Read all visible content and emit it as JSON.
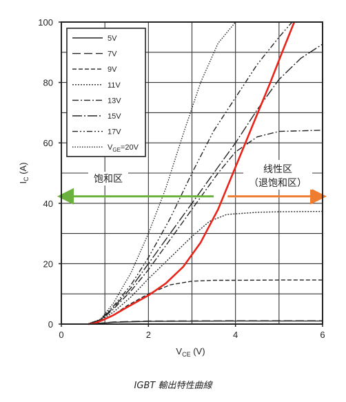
{
  "caption": "IGBT 輸出特性曲線",
  "chart_data": {
    "type": "line",
    "xlabel_main": "V",
    "xlabel_sub": "CE",
    "xlabel_unit": "(V)",
    "ylabel_main": "I",
    "ylabel_sub": "C",
    "ylabel_unit": "(A)",
    "xlim": [
      0,
      6
    ],
    "ylim": [
      0,
      100
    ],
    "x_ticks": [
      0,
      2,
      4,
      6
    ],
    "y_ticks": [
      0,
      20,
      40,
      60,
      80,
      100
    ],
    "grid": true,
    "legend_position": "top-left",
    "series": [
      {
        "name": "5V",
        "style": "solid",
        "color": "#222222",
        "points": [
          [
            0,
            0
          ],
          [
            0.6,
            0
          ],
          [
            0.9,
            0.3
          ],
          [
            1.2,
            0.6
          ],
          [
            2,
            0.9
          ],
          [
            4,
            1
          ],
          [
            6,
            1
          ]
        ]
      },
      {
        "name": "7V",
        "style": "longdash",
        "color": "#222222",
        "points": [
          [
            0,
            0
          ],
          [
            0.6,
            0
          ],
          [
            0.9,
            0.3
          ],
          [
            1.2,
            0.7
          ],
          [
            2,
            1
          ],
          [
            4,
            1.1
          ],
          [
            6,
            1.1
          ]
        ]
      },
      {
        "name": "9V",
        "style": "dash",
        "color": "#222222",
        "points": [
          [
            0,
            0
          ],
          [
            0.6,
            0
          ],
          [
            0.9,
            1
          ],
          [
            1.2,
            3
          ],
          [
            1.5,
            6
          ],
          [
            2,
            10
          ],
          [
            2.5,
            13
          ],
          [
            3,
            14.2
          ],
          [
            3.5,
            14.5
          ],
          [
            4,
            14.5
          ],
          [
            5,
            14.6
          ],
          [
            6,
            14.6
          ]
        ]
      },
      {
        "name": "11V",
        "style": "dot",
        "color": "#222222",
        "points": [
          [
            0,
            0
          ],
          [
            0.6,
            0
          ],
          [
            0.9,
            1.2
          ],
          [
            1.2,
            4
          ],
          [
            1.6,
            9
          ],
          [
            2,
            15
          ],
          [
            2.5,
            22
          ],
          [
            3,
            29
          ],
          [
            3.4,
            34
          ],
          [
            3.8,
            36.3
          ],
          [
            4.5,
            37
          ],
          [
            5,
            37.2
          ],
          [
            6,
            37.3
          ]
        ]
      },
      {
        "name": "13V",
        "style": "dashdot",
        "color": "#222222",
        "points": [
          [
            0,
            0
          ],
          [
            0.6,
            0
          ],
          [
            0.9,
            1.3
          ],
          [
            1.2,
            5
          ],
          [
            1.6,
            11
          ],
          [
            2,
            18
          ],
          [
            2.4,
            26
          ],
          [
            2.8,
            34
          ],
          [
            3.2,
            42
          ],
          [
            3.6,
            50
          ],
          [
            4,
            57
          ],
          [
            4.5,
            62
          ],
          [
            5,
            63.8
          ],
          [
            6,
            64.2
          ]
        ]
      },
      {
        "name": "15V",
        "style": "longdashdot",
        "color": "#222222",
        "points": [
          [
            0,
            0
          ],
          [
            0.6,
            0
          ],
          [
            0.9,
            1.4
          ],
          [
            1.2,
            5.5
          ],
          [
            1.6,
            12
          ],
          [
            2,
            20
          ],
          [
            2.5,
            30
          ],
          [
            3,
            40
          ],
          [
            3.5,
            50
          ],
          [
            4,
            60
          ],
          [
            4.5,
            71
          ],
          [
            5,
            81
          ],
          [
            5.5,
            88
          ],
          [
            6,
            92.7
          ]
        ]
      },
      {
        "name": "17V",
        "style": "dashdotdot",
        "color": "#222222",
        "points": [
          [
            0,
            0
          ],
          [
            0.6,
            0
          ],
          [
            0.9,
            1.5
          ],
          [
            1.2,
            6
          ],
          [
            1.6,
            13
          ],
          [
            2,
            22
          ],
          [
            2.5,
            35
          ],
          [
            3,
            50
          ],
          [
            3.5,
            64
          ],
          [
            4,
            75
          ],
          [
            4.5,
            86
          ],
          [
            5,
            95
          ],
          [
            5.3,
            100
          ]
        ]
      },
      {
        "name": "V_GE=20V",
        "style": "finedot",
        "color": "#222222",
        "points": [
          [
            0,
            0
          ],
          [
            0.6,
            0
          ],
          [
            0.9,
            1.6
          ],
          [
            1.2,
            7
          ],
          [
            1.6,
            17
          ],
          [
            2,
            30
          ],
          [
            2.4,
            45
          ],
          [
            2.8,
            63
          ],
          [
            3.2,
            80
          ],
          [
            3.6,
            93
          ],
          [
            4.0,
            100
          ]
        ]
      },
      {
        "name": "",
        "style": "thick",
        "color": "#e8241a",
        "points": [
          [
            0.62,
            0
          ],
          [
            0.75,
            0.2
          ],
          [
            0.95,
            1.3
          ],
          [
            1.2,
            3
          ],
          [
            1.5,
            5.5
          ],
          [
            2,
            9.5
          ],
          [
            2.4,
            13.5
          ],
          [
            2.8,
            19
          ],
          [
            3.2,
            27
          ],
          [
            3.6,
            38
          ],
          [
            4,
            52
          ],
          [
            4.4,
            66
          ],
          [
            4.8,
            80
          ],
          [
            5.1,
            91
          ],
          [
            5.35,
            100
          ]
        ]
      }
    ],
    "legend": {
      "entries": [
        "5V",
        "7V",
        "9V",
        "11V",
        "13V",
        "15V",
        "17V"
      ],
      "last_main": "V",
      "last_sub": "GE",
      "last_rest": "=20V"
    },
    "annotations": {
      "left_region": "饱和区",
      "right_region_line1": "线性区",
      "right_region_line2": "（退饱和区）",
      "green_arrow": {
        "from_x": 0,
        "to_x": 3.5,
        "y": 42.3,
        "color": "#6ab23d"
      },
      "orange_arrow": {
        "from_x": 3.82,
        "to_x": 6,
        "y": 42.3,
        "color": "#ee7d31"
      }
    }
  }
}
